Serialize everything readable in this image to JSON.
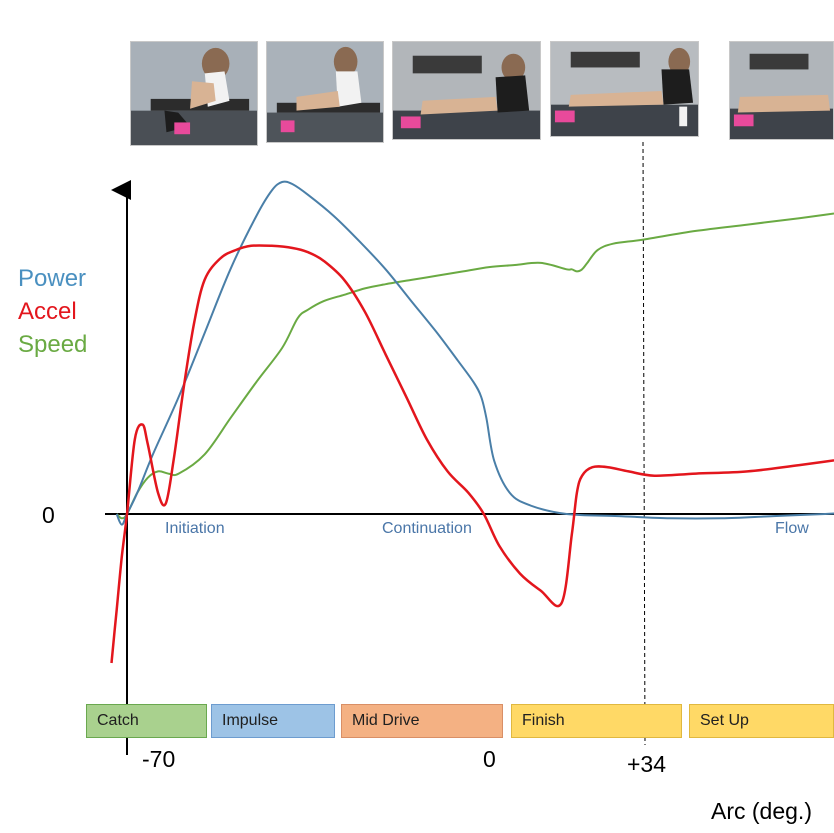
{
  "photos": [
    {
      "name": "catch-photo"
    },
    {
      "name": "drive-photo"
    },
    {
      "name": "mid-drive-photo"
    },
    {
      "name": "finish-photo"
    },
    {
      "name": "recovery-photo"
    }
  ],
  "chart_data": {
    "type": "line",
    "xlabel": "Arc (deg.)",
    "x_ticks": [
      {
        "label": "-70",
        "value": -70
      },
      {
        "label": "0",
        "value": 0
      },
      {
        "label": "+34",
        "value": 34
      }
    ],
    "y_ticks": [
      {
        "label": "0",
        "value": 0
      }
    ],
    "marker_line_at": 34,
    "regions": [
      {
        "label": "Initiation",
        "x": -55
      },
      {
        "label": "Continuation",
        "x": -12
      },
      {
        "label": "Flow",
        "x": 66
      }
    ],
    "phases": [
      {
        "label": "Catch",
        "start": -77,
        "end": -63,
        "color": "#a9d18e",
        "border": "#6aa84f"
      },
      {
        "label": "Impulse",
        "start": -63,
        "end": -49,
        "color": "#9dc3e6",
        "border": "#6d9ccf"
      },
      {
        "label": "Mid Drive",
        "start": -49,
        "end": 1.5,
        "color": "#f4b183",
        "border": "#d98f66"
      },
      {
        "label": "Finish",
        "start": 1.5,
        "end": 35,
        "color": "#ffd966",
        "border": "#e0b840"
      },
      {
        "label": "Set Up",
        "start": 35,
        "end": 72,
        "color": "#ffd966",
        "border": "#e0b840"
      }
    ],
    "ylim": [
      -100,
      165
    ],
    "xlim": [
      -73,
      72
    ],
    "series": [
      {
        "name": "Power",
        "color": "#4a7fa8",
        "x": [
          -72,
          -71,
          -70,
          -68,
          -65,
          -60,
          -55,
          -50,
          -45,
          -42,
          -40,
          -38,
          -35,
          -30,
          -25,
          -20,
          -15,
          -10,
          -6,
          -3,
          -1.5,
          -0.5,
          1,
          4,
          8,
          15,
          25,
          35,
          45,
          55,
          65,
          72
        ],
        "y": [
          0,
          -5,
          0,
          10,
          28,
          55,
          85,
          115,
          140,
          152,
          156,
          155,
          150,
          140,
          128,
          115,
          100,
          85,
          72,
          62,
          55,
          45,
          25,
          10,
          4,
          0,
          -1,
          -2,
          -2,
          -1,
          0,
          1
        ]
      },
      {
        "name": "Accel",
        "color": "#e3161d",
        "x": [
          -73,
          -72,
          -71,
          -70,
          -68.5,
          -67,
          -66,
          -64,
          -62.5,
          -61,
          -59,
          -57,
          -55,
          -52,
          -49,
          -46,
          -42,
          -38,
          -35,
          -32,
          -28,
          -24,
          -20,
          -16,
          -12,
          -8,
          -4,
          -1,
          2,
          6,
          10,
          14,
          16,
          17,
          18,
          20,
          23,
          27,
          32,
          40,
          50,
          60,
          72
        ],
        "y": [
          -70,
          -45,
          -20,
          0,
          35,
          42,
          33,
          10,
          5,
          25,
          60,
          90,
          110,
          120,
          124,
          126,
          126,
          125,
          123,
          119,
          110,
          95,
          75,
          55,
          35,
          20,
          10,
          0,
          -15,
          -28,
          -36,
          -42,
          -10,
          10,
          18,
          22,
          22,
          20,
          18,
          19,
          20,
          23,
          27
        ]
      },
      {
        "name": "Speed",
        "color": "#6aaa43",
        "x": [
          -72,
          -71,
          -70,
          -68,
          -66,
          -64,
          -62,
          -60,
          -55,
          -50,
          -45,
          -40,
          -37,
          -35,
          -32,
          -28,
          -24,
          -20,
          -15,
          -10,
          -5,
          0,
          5,
          10,
          15,
          16,
          17,
          18,
          19,
          21,
          24,
          30,
          40,
          50,
          60,
          72
        ],
        "y": [
          0,
          -2,
          0,
          10,
          17,
          20,
          19,
          19,
          28,
          45,
          62,
          78,
          92,
          96,
          100,
          103,
          106,
          108,
          110,
          112,
          114,
          116,
          117,
          118,
          115,
          115,
          114,
          115,
          118,
          124,
          127,
          129,
          133,
          136,
          139,
          143
        ]
      }
    ]
  }
}
